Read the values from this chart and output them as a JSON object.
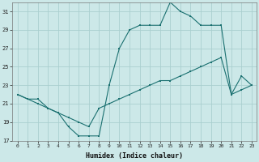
{
  "xlabel": "Humidex (Indice chaleur)",
  "bg_color": "#cce8e8",
  "line_color": "#1a7070",
  "grid_color": "#aacfcf",
  "ylim": [
    17,
    32
  ],
  "yticks": [
    17,
    19,
    21,
    23,
    25,
    27,
    29,
    31
  ],
  "xlim": [
    -0.5,
    23.5
  ],
  "xticks": [
    0,
    1,
    2,
    3,
    4,
    5,
    6,
    7,
    8,
    9,
    10,
    11,
    12,
    13,
    14,
    15,
    16,
    17,
    18,
    19,
    20,
    21,
    22,
    23
  ],
  "line_wavy_x": [
    0,
    1,
    2,
    3,
    4,
    5,
    6,
    7,
    8,
    9,
    10,
    11,
    12,
    13,
    14,
    15,
    16,
    17,
    18,
    19,
    20,
    21,
    22,
    23
  ],
  "line_wavy_y": [
    22,
    21.5,
    21.5,
    20.5,
    20,
    18.5,
    17.5,
    17.5,
    17.5,
    23,
    27,
    29,
    29.5,
    29.5,
    29.5,
    32,
    31,
    30.5,
    29.5,
    29.5,
    29.5,
    22,
    24,
    23
  ],
  "line_diag_x": [
    0,
    1,
    2,
    3,
    4,
    5,
    6,
    7,
    8,
    9,
    10,
    11,
    12,
    13,
    14,
    15,
    16,
    17,
    18,
    19,
    20,
    21,
    22,
    23
  ],
  "line_diag_y": [
    22,
    21.5,
    21.0,
    20.5,
    20.0,
    19.5,
    19.0,
    18.5,
    20.5,
    21.0,
    21.5,
    22.0,
    22.5,
    23.0,
    23.5,
    23.5,
    24.0,
    24.5,
    25.0,
    25.5,
    26.0,
    22.0,
    22.5,
    23.0
  ]
}
